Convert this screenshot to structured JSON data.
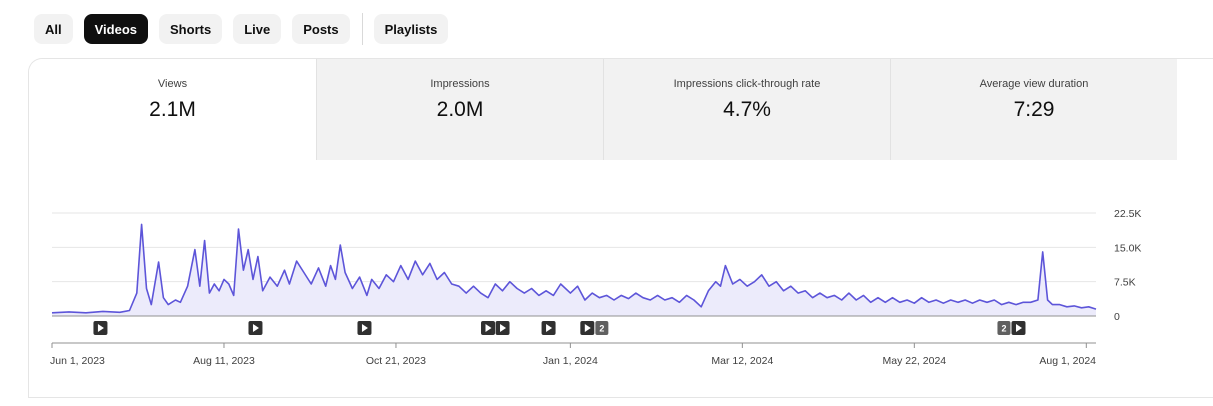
{
  "filters": {
    "chips": [
      {
        "label": "All",
        "active": false
      },
      {
        "label": "Videos",
        "active": true
      },
      {
        "label": "Shorts",
        "active": false
      },
      {
        "label": "Live",
        "active": false
      },
      {
        "label": "Posts",
        "active": false
      }
    ],
    "extra_chip": "Playlists"
  },
  "metrics": [
    {
      "label": "Views",
      "value": "2.1M"
    },
    {
      "label": "Impressions",
      "value": "2.0M"
    },
    {
      "label": "Impressions click-through rate",
      "value": "4.7%"
    },
    {
      "label": "Average view duration",
      "value": "7:29"
    }
  ],
  "chart_data": {
    "type": "area",
    "series_color": "#5d55d9",
    "fill_color": "#ecebfb",
    "x_range": [
      "2023-06-01",
      "2024-08-05"
    ],
    "ylim": [
      0,
      22500
    ],
    "y_ticks": [
      {
        "value": 0,
        "label": "0"
      },
      {
        "value": 7500,
        "label": "7.5K"
      },
      {
        "value": 15000,
        "label": "15.0K"
      },
      {
        "value": 22500,
        "label": "22.5K"
      }
    ],
    "x_ticks": [
      {
        "date": "2023-06-01",
        "label": "Jun 1, 2023"
      },
      {
        "date": "2023-08-11",
        "label": "Aug 11, 2023"
      },
      {
        "date": "2023-10-21",
        "label": "Oct 21, 2023"
      },
      {
        "date": "2024-01-01",
        "label": "Jan 1, 2024"
      },
      {
        "date": "2024-03-12",
        "label": "Mar 12, 2024"
      },
      {
        "date": "2024-05-22",
        "label": "May 22, 2024"
      },
      {
        "date": "2024-08-01",
        "label": "Aug 1, 2024"
      }
    ],
    "grid": true,
    "legend": "none",
    "points": [
      [
        "2023-06-01",
        700
      ],
      [
        "2023-06-08",
        900
      ],
      [
        "2023-06-15",
        700
      ],
      [
        "2023-06-22",
        1000
      ],
      [
        "2023-06-29",
        800
      ],
      [
        "2023-07-03",
        1200
      ],
      [
        "2023-07-06",
        5000
      ],
      [
        "2023-07-08",
        20000
      ],
      [
        "2023-07-10",
        6000
      ],
      [
        "2023-07-12",
        2500
      ],
      [
        "2023-07-15",
        11800
      ],
      [
        "2023-07-17",
        4000
      ],
      [
        "2023-07-19",
        2500
      ],
      [
        "2023-07-22",
        3500
      ],
      [
        "2023-07-24",
        3000
      ],
      [
        "2023-07-27",
        6500
      ],
      [
        "2023-07-30",
        14500
      ],
      [
        "2023-08-01",
        6500
      ],
      [
        "2023-08-03",
        16500
      ],
      [
        "2023-08-05",
        5000
      ],
      [
        "2023-08-07",
        7000
      ],
      [
        "2023-08-09",
        5500
      ],
      [
        "2023-08-11",
        8000
      ],
      [
        "2023-08-13",
        7000
      ],
      [
        "2023-08-15",
        4500
      ],
      [
        "2023-08-17",
        19000
      ],
      [
        "2023-08-19",
        10000
      ],
      [
        "2023-08-21",
        14500
      ],
      [
        "2023-08-23",
        8000
      ],
      [
        "2023-08-25",
        13000
      ],
      [
        "2023-08-27",
        5500
      ],
      [
        "2023-08-30",
        8500
      ],
      [
        "2023-09-02",
        6500
      ],
      [
        "2023-09-05",
        10000
      ],
      [
        "2023-09-07",
        7000
      ],
      [
        "2023-09-10",
        12000
      ],
      [
        "2023-09-13",
        9500
      ],
      [
        "2023-09-16",
        7000
      ],
      [
        "2023-09-19",
        10500
      ],
      [
        "2023-09-22",
        6500
      ],
      [
        "2023-09-24",
        11000
      ],
      [
        "2023-09-26",
        8000
      ],
      [
        "2023-09-28",
        15500
      ],
      [
        "2023-09-30",
        9500
      ],
      [
        "2023-10-03",
        6000
      ],
      [
        "2023-10-06",
        8500
      ],
      [
        "2023-10-09",
        4500
      ],
      [
        "2023-10-11",
        8000
      ],
      [
        "2023-10-14",
        6000
      ],
      [
        "2023-10-17",
        9000
      ],
      [
        "2023-10-20",
        7500
      ],
      [
        "2023-10-23",
        11000
      ],
      [
        "2023-10-26",
        8000
      ],
      [
        "2023-10-29",
        12000
      ],
      [
        "2023-11-01",
        9000
      ],
      [
        "2023-11-04",
        11500
      ],
      [
        "2023-11-07",
        8000
      ],
      [
        "2023-11-10",
        9500
      ],
      [
        "2023-11-13",
        7000
      ],
      [
        "2023-11-16",
        6500
      ],
      [
        "2023-11-19",
        5000
      ],
      [
        "2023-11-22",
        6500
      ],
      [
        "2023-11-25",
        5000
      ],
      [
        "2023-11-28",
        4000
      ],
      [
        "2023-12-01",
        7000
      ],
      [
        "2023-12-04",
        5500
      ],
      [
        "2023-12-07",
        7500
      ],
      [
        "2023-12-10",
        6000
      ],
      [
        "2023-12-13",
        5000
      ],
      [
        "2023-12-16",
        6000
      ],
      [
        "2023-12-19",
        4500
      ],
      [
        "2023-12-22",
        5500
      ],
      [
        "2023-12-25",
        4500
      ],
      [
        "2023-12-28",
        7000
      ],
      [
        "2024-01-01",
        5000
      ],
      [
        "2024-01-04",
        6500
      ],
      [
        "2024-01-07",
        3500
      ],
      [
        "2024-01-10",
        5000
      ],
      [
        "2024-01-13",
        4000
      ],
      [
        "2024-01-16",
        4500
      ],
      [
        "2024-01-19",
        3500
      ],
      [
        "2024-01-22",
        4500
      ],
      [
        "2024-01-25",
        3800
      ],
      [
        "2024-01-28",
        5000
      ],
      [
        "2024-01-31",
        4000
      ],
      [
        "2024-02-03",
        3500
      ],
      [
        "2024-02-06",
        4500
      ],
      [
        "2024-02-09",
        3500
      ],
      [
        "2024-02-12",
        4000
      ],
      [
        "2024-02-15",
        3000
      ],
      [
        "2024-02-18",
        4500
      ],
      [
        "2024-02-21",
        3500
      ],
      [
        "2024-02-24",
        2000
      ],
      [
        "2024-02-27",
        5500
      ],
      [
        "2024-03-01",
        7500
      ],
      [
        "2024-03-03",
        6500
      ],
      [
        "2024-03-05",
        11000
      ],
      [
        "2024-03-08",
        7000
      ],
      [
        "2024-03-11",
        8000
      ],
      [
        "2024-03-14",
        6500
      ],
      [
        "2024-03-17",
        7500
      ],
      [
        "2024-03-20",
        9000
      ],
      [
        "2024-03-23",
        6500
      ],
      [
        "2024-03-26",
        7500
      ],
      [
        "2024-03-29",
        5500
      ],
      [
        "2024-04-01",
        6500
      ],
      [
        "2024-04-04",
        5000
      ],
      [
        "2024-04-07",
        5500
      ],
      [
        "2024-04-10",
        4000
      ],
      [
        "2024-04-13",
        5000
      ],
      [
        "2024-04-16",
        4000
      ],
      [
        "2024-04-19",
        4500
      ],
      [
        "2024-04-22",
        3500
      ],
      [
        "2024-04-25",
        5000
      ],
      [
        "2024-04-28",
        3500
      ],
      [
        "2024-05-01",
        4500
      ],
      [
        "2024-05-04",
        3000
      ],
      [
        "2024-05-07",
        4000
      ],
      [
        "2024-05-10",
        3000
      ],
      [
        "2024-05-13",
        4000
      ],
      [
        "2024-05-16",
        3000
      ],
      [
        "2024-05-19",
        3500
      ],
      [
        "2024-05-22",
        2800
      ],
      [
        "2024-05-25",
        4000
      ],
      [
        "2024-05-28",
        3000
      ],
      [
        "2024-05-31",
        3500
      ],
      [
        "2024-06-03",
        2800
      ],
      [
        "2024-06-06",
        3500
      ],
      [
        "2024-06-09",
        3000
      ],
      [
        "2024-06-12",
        3500
      ],
      [
        "2024-06-15",
        2800
      ],
      [
        "2024-06-18",
        3500
      ],
      [
        "2024-06-21",
        3000
      ],
      [
        "2024-06-24",
        3500
      ],
      [
        "2024-06-27",
        2500
      ],
      [
        "2024-06-30",
        3000
      ],
      [
        "2024-07-03",
        2500
      ],
      [
        "2024-07-06",
        3000
      ],
      [
        "2024-07-09",
        3000
      ],
      [
        "2024-07-12",
        3500
      ],
      [
        "2024-07-14",
        14000
      ],
      [
        "2024-07-16",
        3500
      ],
      [
        "2024-07-18",
        2500
      ],
      [
        "2024-07-21",
        2500
      ],
      [
        "2024-07-24",
        2000
      ],
      [
        "2024-07-27",
        2200
      ],
      [
        "2024-07-30",
        1800
      ],
      [
        "2024-08-02",
        2000
      ],
      [
        "2024-08-05",
        1500
      ]
    ],
    "markers": [
      {
        "date": "2023-06-21",
        "type": "play"
      },
      {
        "date": "2023-08-24",
        "type": "play"
      },
      {
        "date": "2023-10-08",
        "type": "play"
      },
      {
        "date": "2023-11-28",
        "type": "play"
      },
      {
        "date": "2023-12-04",
        "type": "play"
      },
      {
        "date": "2023-12-23",
        "type": "play"
      },
      {
        "date": "2024-01-08",
        "type": "play"
      },
      {
        "date": "2024-01-14",
        "type": "badge",
        "label": "2"
      },
      {
        "date": "2024-06-28",
        "type": "badge",
        "label": "2"
      },
      {
        "date": "2024-07-04",
        "type": "play"
      }
    ]
  }
}
